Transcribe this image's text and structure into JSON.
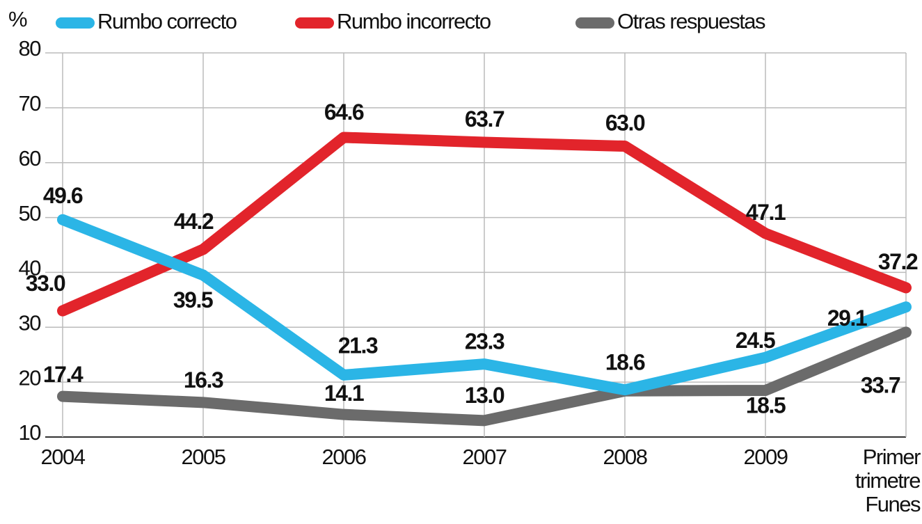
{
  "chart_data": {
    "type": "line",
    "y_unit": "%",
    "categories": [
      "2004",
      "2005",
      "2006",
      "2007",
      "2008",
      "2009",
      "Primer trimetre Funes"
    ],
    "series": [
      {
        "name": "Rumbo correcto",
        "color": "#2bb5e6",
        "values": [
          49.6,
          39.5,
          21.3,
          23.3,
          18.6,
          24.5,
          33.7
        ],
        "value_labels": [
          "49.6",
          "39.5",
          "21.3",
          "23.3",
          "18.6",
          "24.5",
          "33.7"
        ]
      },
      {
        "name": "Rumbo incorrecto",
        "color": "#e2242b",
        "values": [
          33.0,
          44.2,
          64.6,
          63.7,
          63.0,
          47.1,
          37.2
        ],
        "value_labels": [
          "33.0",
          "44.2",
          "64.6",
          "63.7",
          "63.0",
          "47.1",
          "37.2"
        ]
      },
      {
        "name": "Otras respuestas",
        "color": "#6b6b6b",
        "values": [
          17.4,
          16.3,
          14.1,
          13.0,
          18.4,
          18.5,
          29.1
        ],
        "value_labels": [
          "17.4",
          "16.3",
          "14.1",
          "13.0",
          null,
          "18.5",
          "29.1"
        ]
      }
    ],
    "ylim": [
      10,
      80
    ],
    "yticks": [
      10,
      20,
      30,
      40,
      50,
      60,
      70,
      80
    ],
    "grid": true,
    "legend": "top"
  }
}
